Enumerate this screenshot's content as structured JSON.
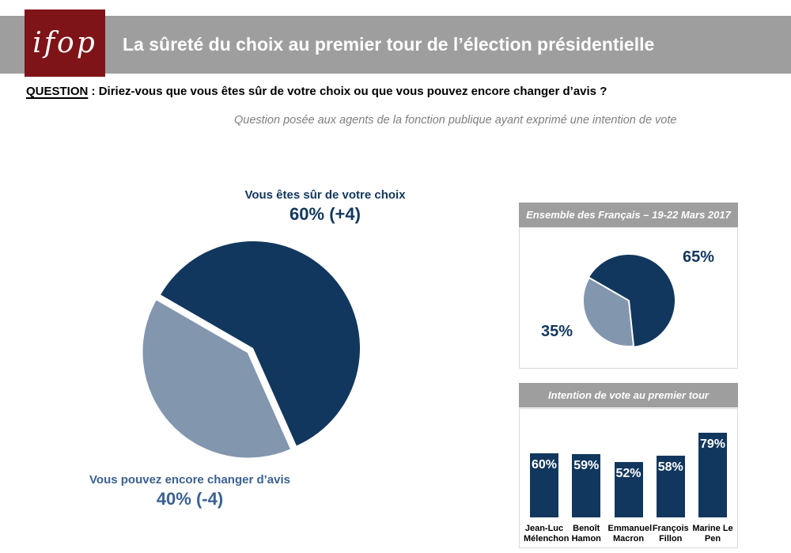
{
  "logo": {
    "text": "ifop",
    "bg_color": "#7E1418"
  },
  "banner": {
    "title": "La sûreté du choix au premier tour de l’élection présidentielle",
    "bg_color": "#9E9E9E",
    "text_color": "#FFFFFF"
  },
  "question": {
    "label": "QUESTION",
    "separator": " : ",
    "text": "Diriez-vous que vous êtes sûr de votre choix ou que vous pouvez encore changer d’avis ?",
    "subtitle": "Question posée aux agents de la fonction publique ayant exprimé une intention de vote"
  },
  "colors": {
    "navy": "#12375E",
    "blue_gray": "#8296AE",
    "steel_text": "#3A6191",
    "header_gray": "#9E9E9E",
    "logo_red": "#7E1418",
    "box_border": "#D9D9D9",
    "subtitle_gray": "#7F7F7F"
  },
  "chart_data": [
    {
      "id": "certitude-pie",
      "type": "pie",
      "slices": [
        {
          "label": "Vous êtes sûr de votre choix",
          "value": 60,
          "evolution": "+4",
          "display": "60% (+4)",
          "color": "#12375E"
        },
        {
          "label": "Vous pouvez encore changer d’avis",
          "value": 40,
          "evolution": "-4",
          "display": "40% (-4)",
          "color": "#8296AE",
          "exploded": true
        }
      ],
      "start_angle": 300,
      "legend_position": "none"
    },
    {
      "id": "ensemble-pie",
      "type": "pie",
      "title": "Ensemble des Français – 19-22 Mars 2017",
      "slices": [
        {
          "label": "65%",
          "value": 65,
          "color": "#12375E"
        },
        {
          "label": "35%",
          "value": 35,
          "color": "#8296AE"
        }
      ],
      "start_angle": 300,
      "legend_position": "none"
    },
    {
      "id": "intentions-bar",
      "type": "bar",
      "title": "Intention de vote au premier tour",
      "categories": [
        "Jean-Luc Mélenchon",
        "Benoît Hamon",
        "Emmanuel Macron",
        "François Fillon",
        "Marine Le Pen"
      ],
      "values": [
        60,
        59,
        52,
        58,
        79
      ],
      "value_labels": [
        "60%",
        "59%",
        "52%",
        "58%",
        "79%"
      ],
      "bar_color": "#12375E",
      "ylim": [
        0,
        100
      ],
      "grid": false
    }
  ]
}
